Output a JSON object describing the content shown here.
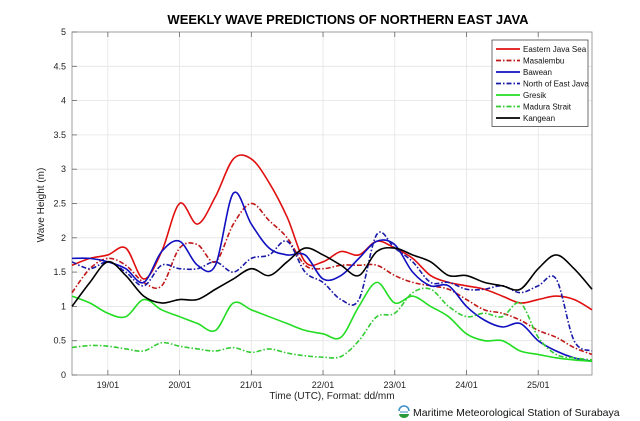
{
  "chart_data": {
    "type": "line",
    "title": "WEEKLY WAVE PREDICTIONS OF NORTHERN EAST JAVA",
    "xlabel": "Time (UTC), Format: dd/mm",
    "ylabel": "Wave Height (m)",
    "ylim": [
      0,
      5
    ],
    "xlim": [
      18.5,
      25.75
    ],
    "yticks": [
      0,
      0.5,
      1,
      1.5,
      2,
      2.5,
      3,
      3.5,
      4,
      4.5,
      5
    ],
    "ytick_labels": [
      "0",
      "0.5",
      "1",
      "1.5",
      "2",
      "2.5",
      "3",
      "3.5",
      "4",
      "4.5",
      "5"
    ],
    "xticks": [
      19,
      20,
      21,
      22,
      23,
      24,
      25
    ],
    "xtick_labels": [
      "19/01",
      "20/01",
      "21/01",
      "22/01",
      "23/01",
      "24/01",
      "25/01"
    ],
    "grid": true,
    "legend_position": "top-right",
    "x": [
      18.5,
      18.75,
      19.0,
      19.25,
      19.5,
      19.75,
      20.0,
      20.25,
      20.5,
      20.75,
      21.0,
      21.25,
      21.5,
      21.75,
      22.0,
      22.25,
      22.5,
      22.75,
      23.0,
      23.25,
      23.5,
      23.75,
      24.0,
      24.25,
      24.5,
      24.75,
      25.0,
      25.25,
      25.5,
      25.75
    ],
    "series": [
      {
        "name": "Eastern Java Sea",
        "color": "#e01010",
        "style": "solid",
        "values": [
          1.6,
          1.7,
          1.75,
          1.85,
          1.4,
          1.8,
          2.5,
          2.2,
          2.6,
          3.15,
          3.15,
          2.8,
          2.3,
          1.65,
          1.65,
          1.8,
          1.75,
          1.95,
          1.85,
          1.7,
          1.45,
          1.35,
          1.3,
          1.25,
          1.15,
          1.05,
          1.1,
          1.15,
          1.1,
          0.95
        ]
      },
      {
        "name": "Masalembu",
        "color": "#c01818",
        "style": "dashdot",
        "values": [
          1.2,
          1.55,
          1.7,
          1.6,
          1.35,
          1.3,
          1.85,
          1.9,
          1.65,
          2.2,
          2.5,
          2.25,
          2.0,
          1.6,
          1.55,
          1.6,
          1.6,
          1.6,
          1.45,
          1.35,
          1.3,
          1.25,
          1.1,
          0.95,
          0.9,
          0.8,
          0.65,
          0.55,
          0.4,
          0.3
        ]
      },
      {
        "name": "Bawean",
        "color": "#1010c0",
        "style": "solid",
        "values": [
          1.7,
          1.7,
          1.65,
          1.55,
          1.35,
          1.8,
          1.95,
          1.6,
          1.6,
          2.65,
          2.2,
          1.85,
          1.75,
          1.75,
          1.4,
          1.45,
          1.7,
          1.95,
          1.9,
          1.5,
          1.3,
          1.3,
          1.0,
          0.8,
          0.7,
          0.75,
          0.5,
          0.35,
          0.25,
          0.2
        ]
      },
      {
        "name": "North of East Java",
        "color": "#1a1aa8",
        "style": "dashdot",
        "values": [
          1.65,
          1.55,
          1.65,
          1.5,
          1.3,
          1.6,
          1.55,
          1.55,
          1.65,
          1.5,
          1.7,
          1.75,
          1.95,
          1.5,
          1.35,
          1.1,
          1.1,
          2.05,
          1.85,
          1.65,
          1.35,
          1.35,
          1.25,
          1.25,
          1.3,
          1.2,
          1.3,
          1.4,
          0.5,
          0.35
        ]
      },
      {
        "name": "Gresik",
        "color": "#22dd22",
        "style": "solid",
        "values": [
          1.15,
          1.05,
          0.9,
          0.85,
          1.1,
          0.95,
          0.85,
          0.75,
          0.65,
          1.05,
          0.95,
          0.85,
          0.75,
          0.65,
          0.6,
          0.55,
          1.0,
          1.35,
          1.05,
          1.15,
          1.0,
          0.85,
          0.6,
          0.5,
          0.5,
          0.35,
          0.3,
          0.25,
          0.22,
          0.2
        ]
      },
      {
        "name": "Madura Strait",
        "color": "#33cc33",
        "style": "dashdot",
        "values": [
          0.4,
          0.43,
          0.42,
          0.38,
          0.35,
          0.47,
          0.42,
          0.38,
          0.35,
          0.4,
          0.33,
          0.38,
          0.32,
          0.28,
          0.26,
          0.27,
          0.5,
          0.85,
          0.9,
          1.2,
          1.25,
          1.0,
          0.85,
          0.9,
          0.85,
          1.05,
          0.55,
          0.3,
          0.25,
          0.22
        ]
      },
      {
        "name": "Kangean",
        "color": "#000000",
        "style": "solid",
        "values": [
          1.0,
          1.35,
          1.65,
          1.45,
          1.15,
          1.05,
          1.1,
          1.1,
          1.25,
          1.4,
          1.55,
          1.45,
          1.65,
          1.85,
          1.75,
          1.6,
          1.45,
          1.8,
          1.85,
          1.75,
          1.65,
          1.45,
          1.45,
          1.35,
          1.3,
          1.25,
          1.55,
          1.75,
          1.55,
          1.25
        ]
      }
    ]
  },
  "credit": {
    "text": "Maritime Meteorological Station of Surabaya",
    "logo_icon": "bmkg-logo-icon"
  }
}
